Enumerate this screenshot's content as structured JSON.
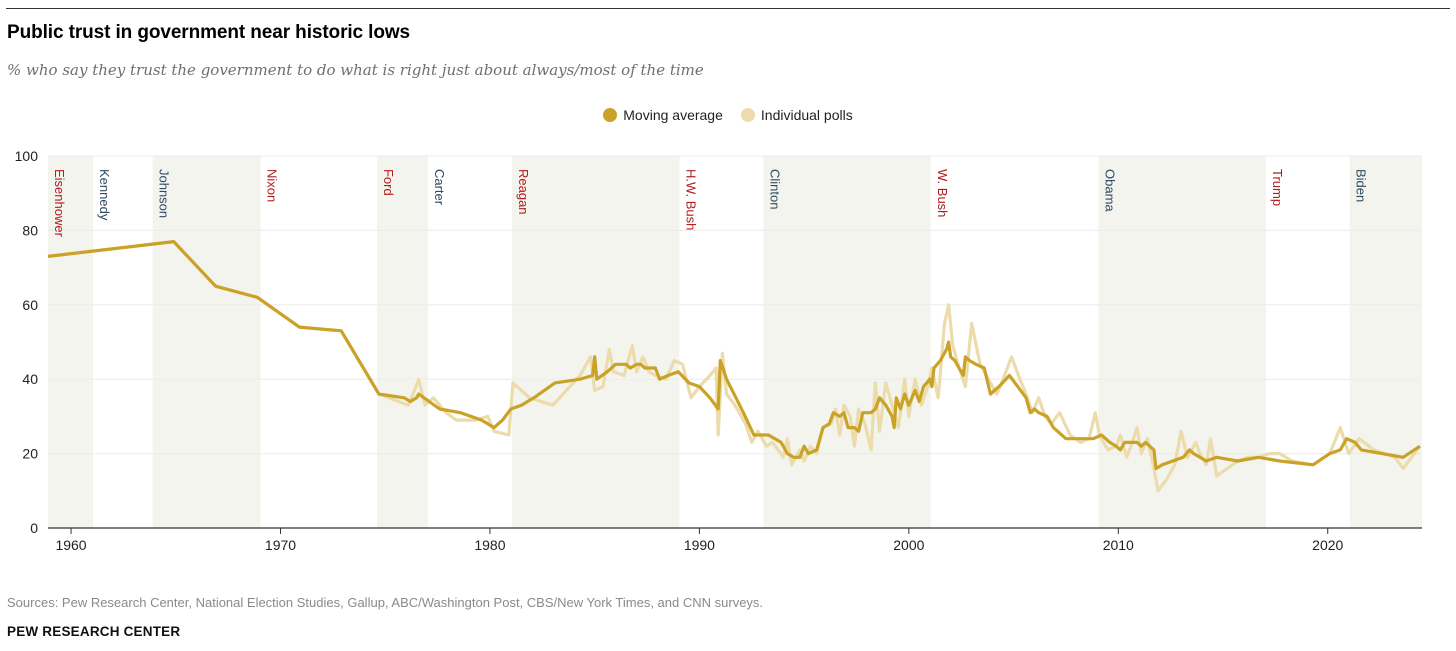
{
  "header": {
    "title": "Public trust in government near historic lows",
    "subtitle": "% who say they trust the government to do what is right just about always/most of the time"
  },
  "legend": {
    "moving_average": "Moving average",
    "individual_polls": "Individual polls"
  },
  "footer": {
    "sources": "Sources: Pew Research Center, National Election Studies, Gallup, ABC/Washington Post, CBS/New York Times, and CNN surveys.",
    "organization": "PEW RESEARCH CENTER"
  },
  "colors": {
    "moving_average": "#c9a227",
    "individual_polls": "#ecdcab",
    "term_shading": "#f4f4ef",
    "republican": "#b11c1c",
    "democrat": "#2d4a63",
    "gridline": "#ebebeb",
    "axis": "#333333"
  },
  "chart_data": {
    "type": "line",
    "title": "Public trust in government near historic lows",
    "subtitle": "% who say they trust the government to do what is right just about always/most of the time",
    "xlabel": "",
    "ylabel": "",
    "xlim": [
      1958.9,
      2024.5
    ],
    "ylim": [
      0,
      100
    ],
    "x_ticks": [
      1960,
      1970,
      1980,
      1990,
      2000,
      2010,
      2020
    ],
    "y_ticks": [
      0,
      20,
      40,
      60,
      80,
      100
    ],
    "grid": true,
    "legend_position": "top-center",
    "presidents": [
      {
        "name": "Eisenhower",
        "start": 1958.9,
        "end": 1961.05,
        "party": "republican",
        "shaded": true
      },
      {
        "name": "Kennedy",
        "start": 1961.05,
        "end": 1963.9,
        "party": "democrat",
        "shaded": false
      },
      {
        "name": "Johnson",
        "start": 1963.9,
        "end": 1969.05,
        "party": "democrat",
        "shaded": true
      },
      {
        "name": "Nixon",
        "start": 1969.05,
        "end": 1974.6,
        "party": "republican",
        "shaded": false
      },
      {
        "name": "Ford",
        "start": 1974.6,
        "end": 1977.05,
        "party": "republican",
        "shaded": true
      },
      {
        "name": "Carter",
        "start": 1977.05,
        "end": 1981.05,
        "party": "democrat",
        "shaded": false
      },
      {
        "name": "Reagan",
        "start": 1981.05,
        "end": 1989.05,
        "party": "republican",
        "shaded": true
      },
      {
        "name": "H.W. Bush",
        "start": 1989.05,
        "end": 1993.05,
        "party": "republican",
        "shaded": false
      },
      {
        "name": "Clinton",
        "start": 1993.05,
        "end": 2001.05,
        "party": "democrat",
        "shaded": true
      },
      {
        "name": "W. Bush",
        "start": 2001.05,
        "end": 2009.05,
        "party": "republican",
        "shaded": false
      },
      {
        "name": "Obama",
        "start": 2009.05,
        "end": 2017.05,
        "party": "democrat",
        "shaded": true
      },
      {
        "name": "Trump",
        "start": 2017.05,
        "end": 2021.05,
        "party": "republican",
        "shaded": false
      },
      {
        "name": "Biden",
        "start": 2021.05,
        "end": 2024.5,
        "party": "democrat",
        "shaded": true
      }
    ],
    "series": [
      {
        "name": "Individual polls",
        "points": [
          [
            1958.9,
            73
          ],
          [
            1964.9,
            77
          ],
          [
            1966.9,
            65
          ],
          [
            1968.9,
            62
          ],
          [
            1970.9,
            54
          ],
          [
            1972.9,
            53
          ],
          [
            1974.7,
            36
          ],
          [
            1976.1,
            33
          ],
          [
            1976.4,
            37
          ],
          [
            1976.6,
            40
          ],
          [
            1976.9,
            33
          ],
          [
            1977.3,
            35
          ],
          [
            1977.9,
            31
          ],
          [
            1978.4,
            29
          ],
          [
            1979.3,
            29
          ],
          [
            1979.9,
            30
          ],
          [
            1980.2,
            26
          ],
          [
            1980.9,
            25
          ],
          [
            1981.1,
            39
          ],
          [
            1981.9,
            35
          ],
          [
            1983.0,
            33
          ],
          [
            1984.3,
            41
          ],
          [
            1984.8,
            46
          ],
          [
            1985.0,
            37
          ],
          [
            1985.4,
            38
          ],
          [
            1985.7,
            48
          ],
          [
            1985.9,
            42
          ],
          [
            1986.4,
            41
          ],
          [
            1986.8,
            49
          ],
          [
            1987.0,
            42
          ],
          [
            1987.3,
            46
          ],
          [
            1987.6,
            42
          ],
          [
            1987.9,
            41
          ],
          [
            1988.4,
            40
          ],
          [
            1988.8,
            45
          ],
          [
            1989.2,
            44
          ],
          [
            1989.6,
            35
          ],
          [
            1990.0,
            38
          ],
          [
            1990.5,
            41
          ],
          [
            1990.8,
            43
          ],
          [
            1990.9,
            25
          ],
          [
            1991.1,
            47
          ],
          [
            1991.3,
            36
          ],
          [
            1991.7,
            33
          ],
          [
            1992.2,
            28
          ],
          [
            1992.5,
            23
          ],
          [
            1992.8,
            26
          ],
          [
            1993.2,
            22
          ],
          [
            1993.5,
            23
          ],
          [
            1994.0,
            19
          ],
          [
            1994.2,
            24
          ],
          [
            1994.4,
            17
          ],
          [
            1994.8,
            21
          ],
          [
            1995.0,
            18
          ],
          [
            1995.3,
            22
          ],
          [
            1995.6,
            20
          ],
          [
            1995.9,
            27
          ],
          [
            1996.3,
            28
          ],
          [
            1996.5,
            32
          ],
          [
            1996.7,
            25
          ],
          [
            1996.9,
            33
          ],
          [
            1997.2,
            30
          ],
          [
            1997.4,
            22
          ],
          [
            1997.6,
            32
          ],
          [
            1997.9,
            28
          ],
          [
            1998.2,
            21
          ],
          [
            1998.4,
            39
          ],
          [
            1998.6,
            26
          ],
          [
            1998.9,
            39
          ],
          [
            1999.2,
            33
          ],
          [
            1999.5,
            27
          ],
          [
            1999.8,
            40
          ],
          [
            2000.0,
            30
          ],
          [
            2000.3,
            40
          ],
          [
            2000.6,
            33
          ],
          [
            2000.9,
            38
          ],
          [
            2001.1,
            43
          ],
          [
            2001.4,
            35
          ],
          [
            2001.7,
            55
          ],
          [
            2001.9,
            60
          ],
          [
            2002.1,
            49
          ],
          [
            2002.4,
            43
          ],
          [
            2002.7,
            38
          ],
          [
            2003.0,
            55
          ],
          [
            2003.4,
            44
          ],
          [
            2003.8,
            40
          ],
          [
            2004.2,
            36
          ],
          [
            2004.5,
            40
          ],
          [
            2004.9,
            46
          ],
          [
            2005.3,
            40
          ],
          [
            2005.6,
            36
          ],
          [
            2005.9,
            31
          ],
          [
            2006.2,
            35
          ],
          [
            2006.5,
            30
          ],
          [
            2006.8,
            28
          ],
          [
            2007.2,
            31
          ],
          [
            2007.7,
            25
          ],
          [
            2008.2,
            23
          ],
          [
            2008.6,
            24
          ],
          [
            2008.9,
            31
          ],
          [
            2009.1,
            25
          ],
          [
            2009.5,
            21
          ],
          [
            2009.9,
            22
          ],
          [
            2010.1,
            25
          ],
          [
            2010.4,
            19
          ],
          [
            2010.6,
            22
          ],
          [
            2010.9,
            27
          ],
          [
            2011.1,
            20
          ],
          [
            2011.4,
            24
          ],
          [
            2011.7,
            16
          ],
          [
            2011.9,
            10
          ],
          [
            2012.3,
            13
          ],
          [
            2012.7,
            17
          ],
          [
            2013.0,
            26
          ],
          [
            2013.3,
            19
          ],
          [
            2013.7,
            23
          ],
          [
            2013.9,
            20
          ],
          [
            2014.2,
            17
          ],
          [
            2014.4,
            24
          ],
          [
            2014.7,
            14
          ],
          [
            2015.2,
            16
          ],
          [
            2015.7,
            18
          ],
          [
            2016.2,
            19
          ],
          [
            2016.7,
            19
          ],
          [
            2017.2,
            20
          ],
          [
            2017.7,
            20
          ],
          [
            2018.3,
            18
          ],
          [
            2019.3,
            17
          ],
          [
            2020.1,
            20
          ],
          [
            2020.6,
            27
          ],
          [
            2021.0,
            20
          ],
          [
            2021.5,
            24
          ],
          [
            2022.2,
            21
          ],
          [
            2022.7,
            20
          ],
          [
            2023.2,
            19
          ],
          [
            2023.6,
            16
          ],
          [
            2024.4,
            22
          ]
        ]
      },
      {
        "name": "Moving average",
        "points": [
          [
            1958.9,
            73
          ],
          [
            1964.9,
            77
          ],
          [
            1966.9,
            65
          ],
          [
            1968.9,
            62
          ],
          [
            1970.9,
            54
          ],
          [
            1972.9,
            53
          ],
          [
            1974.7,
            36
          ],
          [
            1975.9,
            35
          ],
          [
            1976.2,
            34
          ],
          [
            1976.5,
            35
          ],
          [
            1976.6,
            36
          ],
          [
            1977.1,
            34
          ],
          [
            1977.6,
            32
          ],
          [
            1978.6,
            31
          ],
          [
            1979.6,
            29
          ],
          [
            1980.2,
            27
          ],
          [
            1980.6,
            29
          ],
          [
            1981.0,
            32
          ],
          [
            1981.5,
            33
          ],
          [
            1982.1,
            35
          ],
          [
            1983.1,
            39
          ],
          [
            1984.3,
            40
          ],
          [
            1984.9,
            41
          ],
          [
            1985.0,
            46
          ],
          [
            1985.1,
            40
          ],
          [
            1985.6,
            42
          ],
          [
            1986.0,
            44
          ],
          [
            1986.5,
            44
          ],
          [
            1986.7,
            43
          ],
          [
            1987.0,
            44
          ],
          [
            1987.2,
            44
          ],
          [
            1987.4,
            43
          ],
          [
            1987.9,
            43
          ],
          [
            1988.1,
            40
          ],
          [
            1988.5,
            41
          ],
          [
            1989.0,
            42
          ],
          [
            1989.5,
            39
          ],
          [
            1990.0,
            38
          ],
          [
            1990.5,
            35
          ],
          [
            1990.9,
            32
          ],
          [
            1991.0,
            45
          ],
          [
            1991.3,
            40
          ],
          [
            1992.1,
            31
          ],
          [
            1992.6,
            25
          ],
          [
            1993.3,
            25
          ],
          [
            1993.9,
            23
          ],
          [
            1994.2,
            20
          ],
          [
            1994.5,
            19
          ],
          [
            1994.8,
            19
          ],
          [
            1995.0,
            22
          ],
          [
            1995.2,
            20
          ],
          [
            1995.6,
            21
          ],
          [
            1995.9,
            27
          ],
          [
            1996.2,
            28
          ],
          [
            1996.4,
            31
          ],
          [
            1996.7,
            30
          ],
          [
            1996.9,
            31
          ],
          [
            1997.1,
            27
          ],
          [
            1997.4,
            27
          ],
          [
            1997.6,
            26
          ],
          [
            1997.8,
            31
          ],
          [
            1998.2,
            31
          ],
          [
            1998.4,
            32
          ],
          [
            1998.6,
            35
          ],
          [
            1998.9,
            33
          ],
          [
            1999.2,
            30
          ],
          [
            1999.3,
            27
          ],
          [
            1999.4,
            35
          ],
          [
            1999.6,
            32
          ],
          [
            1999.8,
            36
          ],
          [
            2000.0,
            33
          ],
          [
            2000.3,
            37
          ],
          [
            2000.5,
            34
          ],
          [
            2000.7,
            38
          ],
          [
            2001.0,
            40
          ],
          [
            2001.1,
            38
          ],
          [
            2001.2,
            43
          ],
          [
            2001.5,
            45
          ],
          [
            2001.8,
            48
          ],
          [
            2001.9,
            50
          ],
          [
            2002.0,
            46
          ],
          [
            2002.2,
            45
          ],
          [
            2002.4,
            43
          ],
          [
            2002.6,
            41
          ],
          [
            2002.7,
            46
          ],
          [
            2002.9,
            45
          ],
          [
            2003.2,
            44
          ],
          [
            2003.6,
            43
          ],
          [
            2003.9,
            36
          ],
          [
            2004.3,
            38
          ],
          [
            2004.8,
            41
          ],
          [
            2005.2,
            38
          ],
          [
            2005.6,
            35
          ],
          [
            2005.8,
            31
          ],
          [
            2006.0,
            32
          ],
          [
            2006.2,
            31
          ],
          [
            2006.6,
            30
          ],
          [
            2006.9,
            27
          ],
          [
            2007.5,
            24
          ],
          [
            2008.2,
            24
          ],
          [
            2008.8,
            24
          ],
          [
            2009.2,
            25
          ],
          [
            2009.6,
            23
          ],
          [
            2009.9,
            22
          ],
          [
            2010.1,
            21
          ],
          [
            2010.3,
            23
          ],
          [
            2010.7,
            23
          ],
          [
            2010.9,
            23
          ],
          [
            2011.1,
            22
          ],
          [
            2011.3,
            23
          ],
          [
            2011.7,
            21
          ],
          [
            2011.8,
            16
          ],
          [
            2012.1,
            17
          ],
          [
            2012.6,
            18
          ],
          [
            2013.1,
            19
          ],
          [
            2013.4,
            21
          ],
          [
            2013.6,
            20
          ],
          [
            2013.9,
            19
          ],
          [
            2014.2,
            18
          ],
          [
            2014.7,
            19
          ],
          [
            2015.7,
            18
          ],
          [
            2016.7,
            19
          ],
          [
            2017.7,
            18
          ],
          [
            2019.3,
            17
          ],
          [
            2020.1,
            20
          ],
          [
            2020.6,
            21
          ],
          [
            2020.9,
            24
          ],
          [
            2021.3,
            23
          ],
          [
            2021.6,
            21
          ],
          [
            2023.6,
            19
          ],
          [
            2024.4,
            22
          ]
        ]
      }
    ]
  }
}
